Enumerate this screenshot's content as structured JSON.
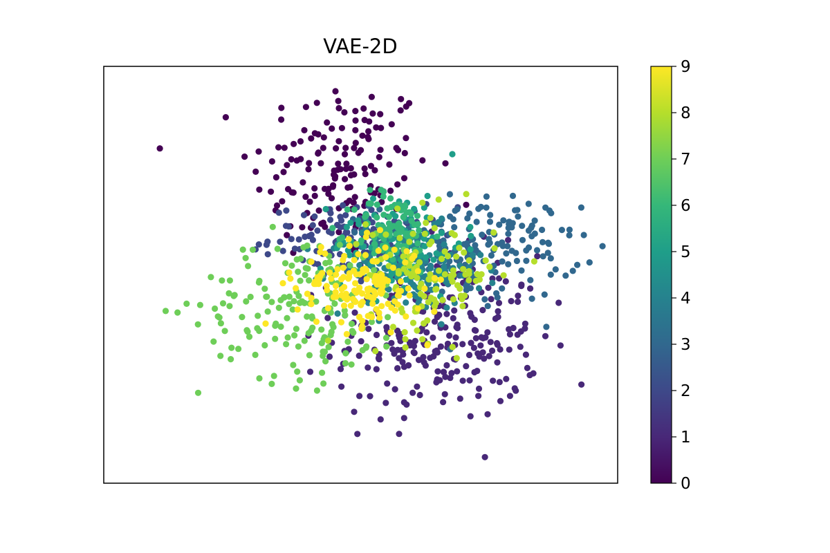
{
  "chart_data": {
    "type": "scatter",
    "title": "VAE-2D",
    "xlabel": "",
    "ylabel": "",
    "show_axis_ticks": false,
    "xlim": [
      -4,
      4
    ],
    "ylim": [
      -4,
      4
    ],
    "colormap": "viridis",
    "colorbar": {
      "range": [
        0,
        9
      ],
      "ticks": [
        "0",
        "1",
        "2",
        "3",
        "4",
        "5",
        "6",
        "7",
        "8",
        "9"
      ],
      "position": "right"
    },
    "class_colors": [
      "#440154",
      "#482878",
      "#3e4989",
      "#31688e",
      "#26828e",
      "#1f9e89",
      "#35b779",
      "#6ece58",
      "#b5de2b",
      "#fde725"
    ],
    "clusters": [
      {
        "label": 0,
        "approx_count": 160,
        "cx": -0.3,
        "cy": 2.0,
        "sx": 0.7,
        "sy": 0.9,
        "note": "upper cluster"
      },
      {
        "label": 1,
        "approx_count": 260,
        "cx": 1.2,
        "cy": -1.2,
        "sx": 0.8,
        "sy": 0.8,
        "note": "lower-right cluster"
      },
      {
        "label": 2,
        "approx_count": 120,
        "cx": 0.0,
        "cy": 0.7,
        "sx": 0.7,
        "sy": 0.3,
        "note": "dense band at center-top"
      },
      {
        "label": 3,
        "approx_count": 180,
        "cx": 1.8,
        "cy": 0.5,
        "sx": 0.8,
        "sy": 0.5,
        "note": "right-center cluster"
      },
      {
        "label": 4,
        "approx_count": 140,
        "cx": 0.7,
        "cy": 0.1,
        "sx": 0.6,
        "sy": 0.4,
        "note": "center cluster"
      },
      {
        "label": 5,
        "approx_count": 100,
        "cx": 0.6,
        "cy": 0.6,
        "sx": 0.5,
        "sy": 0.5,
        "note": "center column"
      },
      {
        "label": 6,
        "approx_count": 100,
        "cx": 0.5,
        "cy": 0.8,
        "sx": 0.3,
        "sy": 0.4,
        "note": "center column"
      },
      {
        "label": 7,
        "approx_count": 170,
        "cx": -0.9,
        "cy": -0.6,
        "sx": 0.8,
        "sy": 0.7,
        "note": "lower-left cluster"
      },
      {
        "label": 8,
        "approx_count": 120,
        "cx": 1.1,
        "cy": 0.0,
        "sx": 0.5,
        "sy": 0.6,
        "note": "center-right cluster"
      },
      {
        "label": 9,
        "approx_count": 160,
        "cx": 0.0,
        "cy": -0.2,
        "sx": 0.5,
        "sy": 0.4,
        "note": "center-left yellow cluster"
      }
    ]
  }
}
